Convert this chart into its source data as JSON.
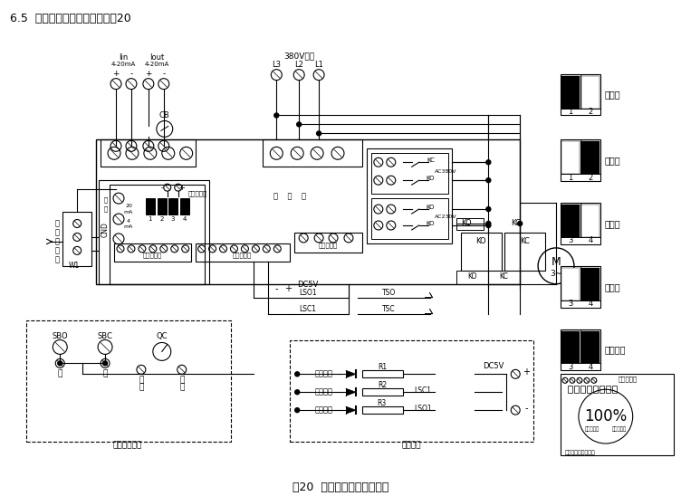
{
  "title_top": "6.5  整体调节型电气原理图见图20",
  "title_bottom": "图20  整体调节型电气原理图",
  "bg_color": "#ffffff",
  "legend_items": [
    {
      "label": "正作用",
      "blacks": [
        1,
        0
      ],
      "nums": [
        "1",
        "2"
      ]
    },
    {
      "label": "反作用",
      "blacks": [
        0,
        1
      ],
      "nums": [
        "1",
        "2"
      ]
    },
    {
      "label": "丢信关",
      "blacks": [
        1,
        0
      ],
      "nums": [
        "3",
        "4"
      ]
    },
    {
      "label": "丢信开",
      "blacks": [
        0,
        1
      ],
      "nums": [
        "3",
        "4"
      ]
    },
    {
      "label": "丢信保持",
      "blacks": [
        1,
        1
      ],
      "nums": [
        "3",
        "4"
      ]
    }
  ]
}
